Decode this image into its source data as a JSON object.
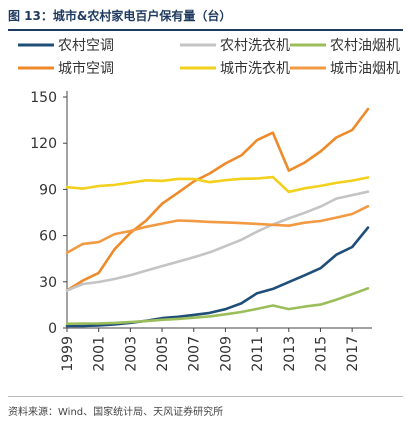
{
  "header": {
    "title": "图 13：城市&农村家电百户保有量（台）"
  },
  "footer": {
    "source": "资料来源：Wind、国家统计局、天风证券研究所"
  },
  "chart_data": {
    "type": "line",
    "title": "图 13：城市&农村家电百户保有量（台）",
    "xlabel": "",
    "ylabel": "",
    "x": [
      1999,
      2000,
      2001,
      2002,
      2003,
      2004,
      2005,
      2006,
      2007,
      2008,
      2009,
      2010,
      2011,
      2012,
      2013,
      2014,
      2015,
      2016,
      2017,
      2018
    ],
    "xticks": [
      "1999",
      "2001",
      "2003",
      "2005",
      "2007",
      "2009",
      "2011",
      "2013",
      "2015",
      "2017"
    ],
    "ylim": [
      0,
      150
    ],
    "yticks": [
      0,
      30,
      60,
      90,
      120,
      150
    ],
    "grid": false,
    "legend_position": "top",
    "series": [
      {
        "name": "农村空调",
        "color": "#1f4e79",
        "values": [
          1.3,
          1.3,
          1.7,
          2.3,
          3.4,
          4.7,
          6.4,
          7.3,
          8.5,
          9.8,
          12.2,
          16.0,
          22.6,
          25.4,
          29.8,
          34.2,
          38.8,
          47.6,
          52.6,
          65.2
        ]
      },
      {
        "name": "城市空调",
        "color": "#ee8a2a",
        "values": [
          24.5,
          30.8,
          35.8,
          51.1,
          61.8,
          69.8,
          80.7,
          87.8,
          95.1,
          100.3,
          106.8,
          112.1,
          122.0,
          126.8,
          102.2,
          107.4,
          114.6,
          123.7,
          128.6,
          142.2
        ]
      },
      {
        "name": "城市洗衣机",
        "color": "#f2d01c",
        "values": [
          91.4,
          90.5,
          92.2,
          92.9,
          94.4,
          95.9,
          95.5,
          96.8,
          96.8,
          94.7,
          96.0,
          96.9,
          97.1,
          98.0,
          88.4,
          90.7,
          92.3,
          94.2,
          95.7,
          97.7
        ]
      },
      {
        "name": "农村洗衣机",
        "color": "#c4c4c4",
        "values": [
          24.3,
          28.6,
          29.9,
          31.8,
          34.3,
          37.3,
          40.2,
          43.0,
          45.9,
          49.1,
          53.1,
          57.3,
          62.6,
          67.2,
          71.2,
          74.8,
          78.8,
          84.0,
          86.3,
          88.5
        ]
      },
      {
        "name": "城市油烟机",
        "color": "#f29a43",
        "values": [
          48.8,
          54.6,
          55.8,
          61.0,
          63.0,
          65.7,
          67.8,
          69.8,
          69.4,
          68.9,
          68.6,
          68.1,
          67.6,
          67.0,
          66.4,
          68.4,
          69.5,
          71.7,
          74.0,
          79.1
        ]
      },
      {
        "name": "农村油烟机",
        "color": "#9cbe5a",
        "values": [
          2.7,
          2.9,
          3.0,
          3.3,
          3.9,
          4.5,
          5.3,
          5.9,
          6.7,
          7.5,
          8.9,
          10.4,
          12.4,
          14.6,
          12.3,
          13.9,
          15.2,
          18.4,
          22.0,
          25.8
        ]
      }
    ]
  }
}
